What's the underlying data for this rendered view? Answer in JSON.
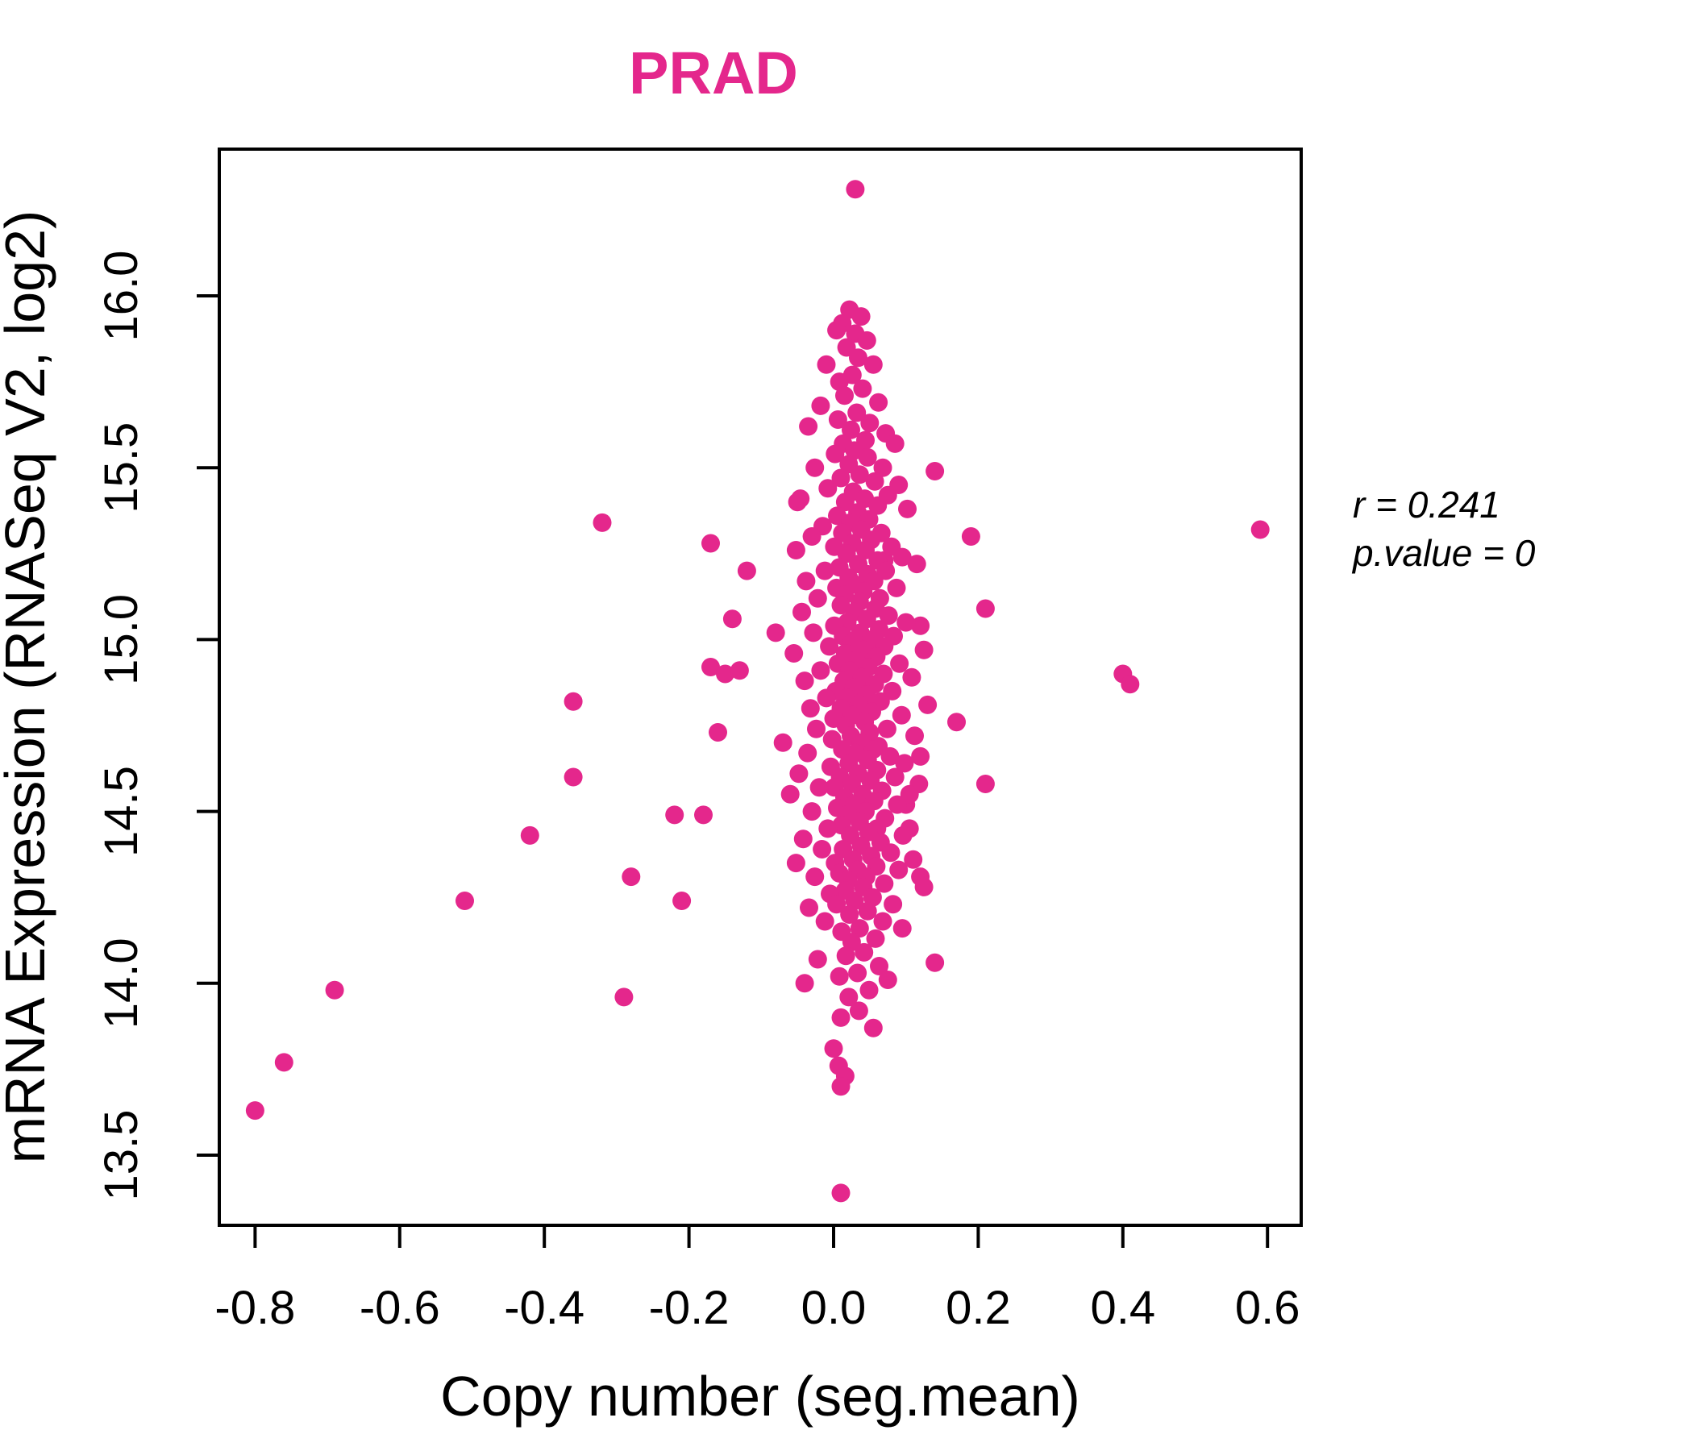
{
  "figure": {
    "background": "#ffffff",
    "accent_color": "#E4278C",
    "axis_color": "#000000"
  },
  "chart_data": {
    "type": "scatter",
    "title": "PRAD",
    "title_color": "#E4278C",
    "xlabel": "Copy number (seg.mean)",
    "ylabel": "mRNA Expression (RNASeq V2, log2)",
    "xlim": [
      -0.85,
      0.65
    ],
    "ylim": [
      13.3,
      16.43
    ],
    "grid": false,
    "legend": "none",
    "x_ticks": [
      -0.8,
      -0.6,
      -0.4,
      -0.2,
      0.0,
      0.2,
      0.4,
      0.6
    ],
    "x_tick_labels": [
      "-0.8",
      "-0.6",
      "-0.4",
      "-0.2",
      "0.0",
      "0.2",
      "0.4",
      "0.6"
    ],
    "y_ticks": [
      13.5,
      14.0,
      14.5,
      15.0,
      15.5,
      16.0
    ],
    "y_tick_labels": [
      "13.5",
      "14.0",
      "14.5",
      "15.0",
      "15.5",
      "16.0"
    ],
    "point_color": "#E4278C",
    "point_radius_px": 11.5,
    "annotation": {
      "r_text": "r = 0.241",
      "p_text": "p.value = 0",
      "correlation_r": 0.241,
      "p_value": 0
    },
    "points": [
      [
        0.03,
        16.31
      ],
      [
        0.01,
        13.39
      ],
      [
        -0.8,
        13.63
      ],
      [
        -0.76,
        13.77
      ],
      [
        -0.69,
        13.98
      ],
      [
        -0.51,
        14.24
      ],
      [
        -0.42,
        14.43
      ],
      [
        -0.36,
        14.82
      ],
      [
        -0.36,
        14.6
      ],
      [
        -0.32,
        15.34
      ],
      [
        -0.29,
        13.96
      ],
      [
        -0.28,
        14.31
      ],
      [
        -0.22,
        14.49
      ],
      [
        -0.18,
        14.49
      ],
      [
        -0.21,
        14.24
      ],
      [
        -0.17,
        15.28
      ],
      [
        -0.14,
        15.06
      ],
      [
        -0.17,
        14.92
      ],
      [
        -0.15,
        14.9
      ],
      [
        -0.13,
        14.91
      ],
      [
        -0.16,
        14.73
      ],
      [
        -0.12,
        15.2
      ],
      [
        -0.08,
        15.02
      ],
      [
        -0.05,
        15.4
      ],
      [
        -0.07,
        14.7
      ],
      [
        0.07,
        15.23
      ],
      [
        0.14,
        15.49
      ],
      [
        0.19,
        15.3
      ],
      [
        0.59,
        15.32
      ],
      [
        0.21,
        15.09
      ],
      [
        0.12,
        15.04
      ],
      [
        0.4,
        14.9
      ],
      [
        0.41,
        14.87
      ],
      [
        0.17,
        14.76
      ],
      [
        0.12,
        14.66
      ],
      [
        0.21,
        14.58
      ],
      [
        0.12,
        14.31
      ],
      [
        0.14,
        14.06
      ],
      [
        0.1,
        14.52
      ],
      [
        0.105,
        14.45
      ],
      [
        0.022,
        15.96
      ],
      [
        0.038,
        15.94
      ],
      [
        0.012,
        15.92
      ],
      [
        0.03,
        15.89
      ],
      [
        0.046,
        15.87
      ],
      [
        0.018,
        15.85
      ],
      [
        0.004,
        15.9
      ],
      [
        0.034,
        15.82
      ],
      [
        -0.01,
        15.8
      ],
      [
        0.055,
        15.8
      ],
      [
        0.026,
        15.77
      ],
      [
        0.008,
        15.75
      ],
      [
        0.04,
        15.73
      ],
      [
        0.015,
        15.71
      ],
      [
        0.062,
        15.69
      ],
      [
        -0.018,
        15.68
      ],
      [
        0.032,
        15.66
      ],
      [
        0.006,
        15.64
      ],
      [
        0.05,
        15.63
      ],
      [
        0.024,
        15.61
      ],
      [
        0.072,
        15.6
      ],
      [
        -0.035,
        15.62
      ],
      [
        0.044,
        15.58
      ],
      [
        0.013,
        15.57
      ],
      [
        0.085,
        15.57
      ],
      [
        0.029,
        15.55
      ],
      [
        0.002,
        15.54
      ],
      [
        0.047,
        15.53
      ],
      [
        0.021,
        15.51
      ],
      [
        0.068,
        15.5
      ],
      [
        -0.026,
        15.5
      ],
      [
        0.036,
        15.48
      ],
      [
        0.01,
        15.47
      ],
      [
        0.057,
        15.46
      ],
      [
        0.09,
        15.45
      ],
      [
        -0.008,
        15.44
      ],
      [
        0.027,
        15.43
      ],
      [
        0.075,
        15.42
      ],
      [
        0.043,
        15.41
      ],
      [
        0.016,
        15.4
      ],
      [
        -0.046,
        15.41
      ],
      [
        0.061,
        15.39
      ],
      [
        0.033,
        15.37
      ],
      [
        0.005,
        15.36
      ],
      [
        0.102,
        15.38
      ],
      [
        0.049,
        15.35
      ],
      [
        0.023,
        15.34
      ],
      [
        -0.015,
        15.33
      ],
      [
        0.038,
        15.32
      ],
      [
        0.012,
        15.31
      ],
      [
        0.066,
        15.31
      ],
      [
        -0.03,
        15.3
      ],
      [
        0.052,
        15.29
      ],
      [
        0.026,
        15.28
      ],
      [
        0.001,
        15.27
      ],
      [
        0.08,
        15.27
      ],
      [
        0.044,
        15.26
      ],
      [
        0.018,
        15.25
      ],
      [
        -0.052,
        15.26
      ],
      [
        0.095,
        15.24
      ],
      [
        0.061,
        15.23
      ],
      [
        0.034,
        15.22
      ],
      [
        0.008,
        15.21
      ],
      [
        0.115,
        15.22
      ],
      [
        -0.012,
        15.2
      ],
      [
        0.072,
        15.2
      ],
      [
        0.047,
        15.19
      ],
      [
        0.021,
        15.18
      ],
      [
        0.056,
        15.17
      ],
      [
        -0.038,
        15.17
      ],
      [
        0.03,
        15.16
      ],
      [
        0.004,
        15.15
      ],
      [
        0.087,
        15.15
      ],
      [
        0.041,
        15.14
      ],
      [
        0.015,
        15.13
      ],
      [
        0.064,
        15.12
      ],
      [
        -0.022,
        15.12
      ],
      [
        0.036,
        15.11
      ],
      [
        0.01,
        15.1
      ],
      [
        0.058,
        15.09
      ],
      [
        0.029,
        15.08
      ],
      [
        -0.044,
        15.08
      ],
      [
        0.076,
        15.07
      ],
      [
        0.046,
        15.06
      ],
      [
        0.019,
        15.05
      ],
      [
        0.001,
        15.04
      ],
      [
        0.1,
        15.05
      ],
      [
        0.063,
        15.03
      ],
      [
        0.037,
        15.02
      ],
      [
        0.013,
        15.01
      ],
      [
        -0.028,
        15.02
      ],
      [
        0.083,
        15.01
      ],
      [
        0.052,
        15.0
      ],
      [
        0.025,
        14.99
      ],
      [
        -0.006,
        14.98
      ],
      [
        0.07,
        14.98
      ],
      [
        0.042,
        14.97
      ],
      [
        0.016,
        14.96
      ],
      [
        0.125,
        14.97
      ],
      [
        -0.055,
        14.96
      ],
      [
        0.059,
        14.95
      ],
      [
        0.031,
        14.94
      ],
      [
        0.006,
        14.93
      ],
      [
        0.091,
        14.93
      ],
      [
        0.048,
        14.92
      ],
      [
        0.022,
        14.91
      ],
      [
        -0.018,
        14.91
      ],
      [
        0.069,
        14.9
      ],
      [
        0.039,
        14.89
      ],
      [
        0.014,
        14.88
      ],
      [
        0.108,
        14.89
      ],
      [
        -0.04,
        14.88
      ],
      [
        0.057,
        14.87
      ],
      [
        0.028,
        14.86
      ],
      [
        0.003,
        14.85
      ],
      [
        0.081,
        14.85
      ],
      [
        0.046,
        14.84
      ],
      [
        0.019,
        14.83
      ],
      [
        -0.01,
        14.83
      ],
      [
        0.065,
        14.82
      ],
      [
        0.035,
        14.81
      ],
      [
        0.01,
        14.8
      ],
      [
        0.13,
        14.81
      ],
      [
        -0.032,
        14.8
      ],
      [
        0.053,
        14.79
      ],
      [
        0.026,
        14.78
      ],
      [
        0.0,
        14.77
      ],
      [
        0.094,
        14.78
      ],
      [
        0.043,
        14.76
      ],
      [
        0.017,
        14.75
      ],
      [
        0.074,
        14.74
      ],
      [
        -0.024,
        14.74
      ],
      [
        0.05,
        14.73
      ],
      [
        0.024,
        14.72
      ],
      [
        -0.002,
        14.71
      ],
      [
        0.112,
        14.72
      ],
      [
        0.038,
        14.7
      ],
      [
        0.062,
        14.69
      ],
      [
        0.012,
        14.68
      ],
      [
        0.055,
        14.68
      ],
      [
        0.03,
        14.67
      ],
      [
        -0.036,
        14.67
      ],
      [
        0.078,
        14.66
      ],
      [
        0.047,
        14.65
      ],
      [
        0.021,
        14.64
      ],
      [
        -0.004,
        14.63
      ],
      [
        0.098,
        14.64
      ],
      [
        0.06,
        14.62
      ],
      [
        0.034,
        14.61
      ],
      [
        0.009,
        14.6
      ],
      [
        -0.048,
        14.61
      ],
      [
        0.085,
        14.6
      ],
      [
        0.051,
        14.59
      ],
      [
        0.025,
        14.58
      ],
      [
        0.001,
        14.57
      ],
      [
        0.118,
        14.58
      ],
      [
        -0.02,
        14.57
      ],
      [
        0.067,
        14.56
      ],
      [
        0.04,
        14.55
      ],
      [
        0.015,
        14.54
      ],
      [
        0.105,
        14.55
      ],
      [
        -0.06,
        14.55
      ],
      [
        0.056,
        14.53
      ],
      [
        0.028,
        14.52
      ],
      [
        0.005,
        14.51
      ],
      [
        0.088,
        14.52
      ],
      [
        0.044,
        14.5
      ],
      [
        0.018,
        14.49
      ],
      [
        -0.03,
        14.5
      ],
      [
        0.071,
        14.48
      ],
      [
        0.036,
        14.47
      ],
      [
        0.011,
        14.46
      ],
      [
        0.06,
        14.45
      ],
      [
        -0.008,
        14.45
      ],
      [
        0.048,
        14.44
      ],
      [
        0.023,
        14.43
      ],
      [
        0.096,
        14.43
      ],
      [
        -0.042,
        14.42
      ],
      [
        0.065,
        14.41
      ],
      [
        0.038,
        14.4
      ],
      [
        0.013,
        14.39
      ],
      [
        -0.016,
        14.39
      ],
      [
        0.079,
        14.38
      ],
      [
        0.052,
        14.37
      ],
      [
        0.027,
        14.36
      ],
      [
        0.002,
        14.35
      ],
      [
        0.11,
        14.36
      ],
      [
        -0.052,
        14.35
      ],
      [
        0.059,
        14.34
      ],
      [
        0.033,
        14.33
      ],
      [
        0.008,
        14.32
      ],
      [
        0.09,
        14.33
      ],
      [
        0.045,
        14.31
      ],
      [
        0.02,
        14.3
      ],
      [
        -0.026,
        14.31
      ],
      [
        0.07,
        14.29
      ],
      [
        0.041,
        14.28
      ],
      [
        0.016,
        14.27
      ],
      [
        0.125,
        14.28
      ],
      [
        -0.005,
        14.26
      ],
      [
        0.054,
        14.25
      ],
      [
        0.029,
        14.24
      ],
      [
        0.004,
        14.23
      ],
      [
        0.082,
        14.23
      ],
      [
        -0.034,
        14.22
      ],
      [
        0.047,
        14.21
      ],
      [
        0.022,
        14.2
      ],
      [
        0.068,
        14.18
      ],
      [
        -0.012,
        14.18
      ],
      [
        0.036,
        14.16
      ],
      [
        0.011,
        14.15
      ],
      [
        0.095,
        14.16
      ],
      [
        0.058,
        14.13
      ],
      [
        0.025,
        14.12
      ],
      [
        0.042,
        14.09
      ],
      [
        0.017,
        14.08
      ],
      [
        -0.022,
        14.07
      ],
      [
        0.063,
        14.05
      ],
      [
        0.033,
        14.03
      ],
      [
        0.008,
        14.02
      ],
      [
        0.075,
        14.01
      ],
      [
        -0.04,
        14.0
      ],
      [
        0.049,
        13.98
      ],
      [
        0.021,
        13.96
      ],
      [
        0.035,
        13.92
      ],
      [
        0.01,
        13.9
      ],
      [
        0.055,
        13.87
      ],
      [
        0.0,
        13.81
      ],
      [
        0.007,
        13.76
      ],
      [
        0.016,
        13.73
      ],
      [
        0.01,
        13.7
      ]
    ]
  }
}
